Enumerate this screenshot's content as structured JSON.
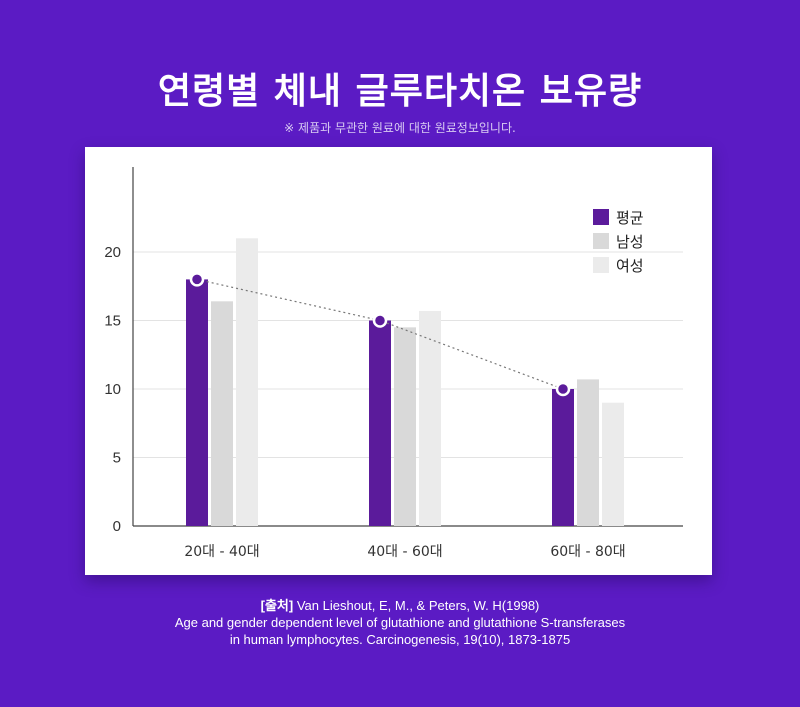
{
  "header": {
    "title": "연령별 체내 글루타치온 보유량",
    "note": "※ 제품과 무관한 원료에 대한 원료정보입니다."
  },
  "chart_data": {
    "type": "bar",
    "title": "연령별 체내 글루타치온 보유량",
    "categories": [
      "20대 - 40대",
      "40대 - 60대",
      "60대 - 80대"
    ],
    "series": [
      {
        "name": "평균",
        "values": [
          18,
          15,
          10
        ],
        "color": "#5b1b9b"
      },
      {
        "name": "남성",
        "values": [
          16.4,
          14.5,
          10.7
        ],
        "color": "#d9d9d9"
      },
      {
        "name": "여성",
        "values": [
          21,
          15.7,
          9
        ],
        "color": "#ebebeb"
      }
    ],
    "trend_line": {
      "series": "평균",
      "style": "dotted",
      "markers": "circle"
    },
    "yticks": [
      0,
      5,
      10,
      15,
      20
    ],
    "ylim": [
      0,
      25
    ],
    "xlabel": "",
    "ylabel": "",
    "grid": true,
    "legend": "top-right"
  },
  "source": {
    "tag": "[출처]",
    "citation_line1": "Van Lieshout, E, M., & Peters, W. H(1998)",
    "citation_line2": "Age and gender dependent level of glutathione and glutathione S-transferases",
    "citation_line3": "in human lymphocytes. Carcinogenesis, 19(10), 1873-1875"
  }
}
